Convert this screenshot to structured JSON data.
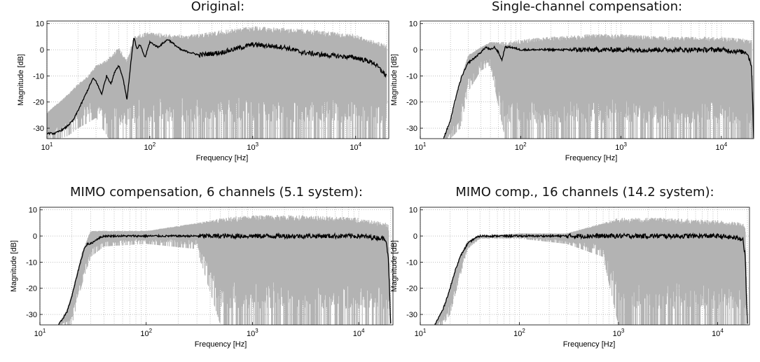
{
  "chart_data": [
    {
      "type": "line",
      "title": "Original:",
      "xlabel": "Frequency [Hz]",
      "ylabel": "Magnitude [dB]",
      "xscale": "log",
      "xlim": [
        10,
        21000
      ],
      "ylim": [
        -34,
        11
      ],
      "x_ticks": [
        "10^1",
        "10^2",
        "10^3",
        "10^4"
      ],
      "y_ticks": [
        "10",
        "0",
        "-10",
        "-20",
        "-30"
      ],
      "grid": true,
      "series": [
        {
          "role": "individual responses (gray)",
          "x": [
            10,
            13,
            16,
            20,
            25,
            30,
            40,
            50,
            60,
            70,
            80,
            100,
            150,
            200,
            300,
            400,
            1000,
            3000,
            10000,
            20000
          ],
          "upper": [
            -24,
            -20,
            -17,
            -13,
            -10,
            -6,
            -3,
            1,
            -4,
            5,
            6,
            7,
            6,
            6,
            6,
            7,
            9,
            8,
            6,
            2
          ],
          "lower": [
            -34,
            -34,
            -33,
            -30,
            -28,
            -26,
            -34,
            -34,
            -34,
            -34,
            -34,
            -34,
            -34,
            -34,
            -34,
            -34,
            -34,
            -34,
            -34,
            -34
          ]
        },
        {
          "role": "average response (black)",
          "x": [
            10,
            12,
            15,
            18,
            22,
            28,
            30,
            34,
            38,
            42,
            46,
            50,
            55,
            60,
            65,
            70,
            75,
            80,
            90,
            100,
            120,
            150,
            200,
            300,
            500,
            1000,
            2000,
            3000,
            5000,
            10000,
            15000,
            20000
          ],
          "y": [
            -32,
            -32,
            -30,
            -27,
            -20,
            -11,
            -12,
            -17,
            -10,
            -13,
            -8,
            -6,
            -11,
            -19,
            -6,
            5,
            0,
            2,
            -3,
            3,
            1,
            4,
            0,
            -2,
            -1,
            2,
            1,
            -1,
            -2,
            -3,
            -5,
            -10
          ]
        }
      ]
    },
    {
      "type": "line",
      "title": "Single-channel compensation:",
      "xlabel": "Frequency [Hz]",
      "ylabel": "Magnitude [dB]",
      "xscale": "log",
      "xlim": [
        10,
        21000
      ],
      "ylim": [
        -34,
        11
      ],
      "x_ticks": [
        "10^1",
        "10^2",
        "10^3",
        "10^4"
      ],
      "y_ticks": [
        "10",
        "0",
        "-10",
        "-20",
        "-30"
      ],
      "grid": true,
      "series": [
        {
          "role": "individual responses (gray)",
          "x": [
            17,
            20,
            25,
            30,
            40,
            50,
            70,
            100,
            200,
            500,
            1000,
            3000,
            10000,
            20000,
            21000
          ],
          "upper": [
            -34,
            -28,
            -12,
            -2,
            1,
            3,
            3,
            4,
            5,
            6,
            6,
            5,
            5,
            4,
            -34
          ],
          "lower": [
            -34,
            -34,
            -30,
            -16,
            -8,
            -6,
            -34,
            -34,
            -34,
            -34,
            -34,
            -34,
            -34,
            -34,
            -34
          ]
        },
        {
          "role": "average response (black)",
          "x": [
            17,
            20,
            23,
            26,
            30,
            35,
            40,
            45,
            50,
            55,
            60,
            65,
            70,
            80,
            100,
            200,
            500,
            1000,
            5000,
            10000,
            18000,
            20000,
            21000
          ],
          "y": [
            -34,
            -27,
            -17,
            -10,
            -5,
            -3,
            -1,
            1,
            0,
            1,
            -1,
            -4,
            1,
            1,
            0,
            0,
            0,
            0,
            0,
            0,
            -1,
            -6,
            -34
          ]
        }
      ]
    },
    {
      "type": "line",
      "title": "MIMO compensation, 6 channels (5.1 system):",
      "xlabel": "Frequency [Hz]",
      "ylabel": "Magnitude [dB]",
      "xscale": "log",
      "xlim": [
        10,
        21000
      ],
      "ylim": [
        -34,
        11
      ],
      "x_ticks": [
        "10^1",
        "10^2",
        "10^3",
        "10^4"
      ],
      "y_ticks": [
        "10",
        "0",
        "-10",
        "-20",
        "-30"
      ],
      "grid": true,
      "series": [
        {
          "role": "individual responses (gray)",
          "x": [
            15,
            18,
            20,
            25,
            30,
            40,
            100,
            300,
            500,
            1000,
            3000,
            10000,
            19000,
            20000
          ],
          "upper": [
            -34,
            -28,
            -22,
            -6,
            2,
            2,
            2,
            5,
            7,
            8,
            8,
            7,
            5,
            -34
          ],
          "lower": [
            -34,
            -34,
            -34,
            -18,
            -8,
            -4,
            -3,
            -5,
            -34,
            -34,
            -34,
            -34,
            -34,
            -34
          ]
        },
        {
          "role": "average response (black)",
          "x": [
            15,
            18,
            20,
            23,
            26,
            28,
            30,
            35,
            40,
            60,
            100,
            300,
            1000,
            3000,
            10000,
            18000,
            19000,
            20000
          ],
          "y": [
            -34,
            -29,
            -23,
            -13,
            -5,
            -3,
            -3,
            -1,
            0,
            0,
            0,
            0,
            0,
            0,
            0,
            -1,
            -8,
            -34
          ]
        }
      ]
    },
    {
      "type": "line",
      "title": "MIMO comp., 16 channels (14.2 system):",
      "xlabel": "Frequency [Hz]",
      "ylabel": "Magnitude [dB]",
      "xscale": "log",
      "xlim": [
        10,
        21000
      ],
      "ylim": [
        -34,
        11
      ],
      "x_ticks": [
        "10^1",
        "10^2",
        "10^3",
        "10^4"
      ],
      "y_ticks": [
        "10",
        "0",
        "-10",
        "-20",
        "-30"
      ],
      "grid": true,
      "series": [
        {
          "role": "individual responses (gray)",
          "x": [
            14,
            17,
            20,
            25,
            30,
            40,
            100,
            300,
            700,
            1000,
            3000,
            10000,
            19000,
            20000
          ],
          "upper": [
            -34,
            -28,
            -20,
            -8,
            -2,
            0,
            1,
            1,
            5,
            7,
            7,
            6,
            5,
            -34
          ],
          "lower": [
            -34,
            -34,
            -30,
            -16,
            -5,
            -1,
            -1,
            -3,
            -8,
            -34,
            -34,
            -34,
            -34,
            -34
          ]
        },
        {
          "role": "average response (black)",
          "x": [
            14,
            17,
            20,
            23,
            26,
            30,
            35,
            40,
            60,
            100,
            300,
            1000,
            3000,
            10000,
            18000,
            19000,
            20000
          ],
          "y": [
            -34,
            -28,
            -20,
            -12,
            -7,
            -3,
            -1,
            0,
            0,
            0,
            0,
            0,
            0,
            0,
            -1,
            -8,
            -34
          ]
        }
      ]
    }
  ]
}
